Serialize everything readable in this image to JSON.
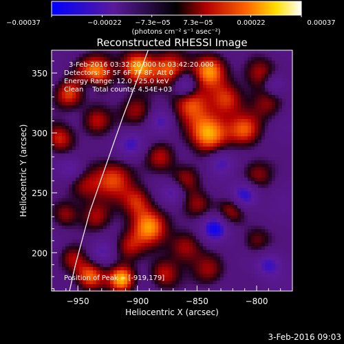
{
  "chart_data": {
    "type": "heatmap",
    "title": "Reconstructed RHESSI Image",
    "xlabel": "Heliocentric X (arcsec)",
    "ylabel": "Heliocentric Y (arcsec)",
    "xlim": [
      -972,
      -770
    ],
    "ylim": [
      168,
      369
    ],
    "xticks": [
      -950,
      -900,
      -850,
      -800
    ],
    "yticks": [
      200,
      250,
      300,
      350
    ],
    "xtick_labels": [
      "−950",
      "−900",
      "−850",
      "−800"
    ],
    "ytick_labels": [
      "200",
      "250",
      "300",
      "350"
    ],
    "colorbar": {
      "range": [
        -0.00037,
        0.00037
      ],
      "ticks": [
        -0.00037,
        -0.00022,
        -7.3e-05,
        7.3e-05,
        0.00022,
        0.00037
      ],
      "tick_labels": [
        "−0.00037",
        "−0.00022",
        "−7.3e−05",
        "7.3e−05",
        "0.00022",
        "0.00037"
      ],
      "unit_label": "(photons cm⁻² s⁻¹ asec⁻²)",
      "colormap": [
        "#0000ff",
        "#5a1a9a",
        "#000000",
        "#b40000",
        "#ff6400",
        "#ffe000",
        "#ffffff"
      ]
    },
    "annotations": {
      "time_range": "3-Feb-2016 03:32:20.000 to 03:42:20.000",
      "detectors": "Detectors: 3F 5F 6F 7F 8F, Att 0",
      "energy": "Energy Range: 12.0 - 25.0 keV",
      "clean": "Clean    Total counts: 4.54E+03",
      "position": "Position of Peak = [-919,179]"
    },
    "limb_curve": {
      "x": [
        -957,
        -952,
        -946,
        -940,
        -933,
        -926,
        -919,
        -912,
        -905,
        -898,
        -891
      ],
      "y": [
        168,
        190,
        212,
        234,
        254,
        274,
        294,
        314,
        332,
        350,
        369
      ]
    },
    "sources": [
      {
        "x": -935,
        "y": 350,
        "sigma": 11,
        "amp": 0.9
      },
      {
        "x": -900,
        "y": 355,
        "sigma": 10,
        "amp": 0.85
      },
      {
        "x": -872,
        "y": 353,
        "sigma": 11,
        "amp": 0.75
      },
      {
        "x": -840,
        "y": 352,
        "sigma": 10,
        "amp": 0.8
      },
      {
        "x": -798,
        "y": 350,
        "sigma": 10,
        "amp": 0.55
      },
      {
        "x": -958,
        "y": 332,
        "sigma": 9,
        "amp": 0.65
      },
      {
        "x": -935,
        "y": 310,
        "sigma": 9,
        "amp": 0.55
      },
      {
        "x": -900,
        "y": 318,
        "sigma": 10,
        "amp": 0.5
      },
      {
        "x": -855,
        "y": 325,
        "sigma": 11,
        "amp": 0.65
      },
      {
        "x": -825,
        "y": 328,
        "sigma": 10,
        "amp": 0.6
      },
      {
        "x": -790,
        "y": 325,
        "sigma": 10,
        "amp": 0.45
      },
      {
        "x": -965,
        "y": 295,
        "sigma": 9,
        "amp": 0.6
      },
      {
        "x": -920,
        "y": 262,
        "sigma": 12,
        "amp": 0.7
      },
      {
        "x": -880,
        "y": 280,
        "sigma": 9,
        "amp": 0.5
      },
      {
        "x": -840,
        "y": 300,
        "sigma": 12,
        "amp": 0.95
      },
      {
        "x": -810,
        "y": 302,
        "sigma": 10,
        "amp": 0.65
      },
      {
        "x": -945,
        "y": 255,
        "sigma": 10,
        "amp": 0.45
      },
      {
        "x": -900,
        "y": 243,
        "sigma": 9,
        "amp": 0.55
      },
      {
        "x": -860,
        "y": 262,
        "sigma": 9,
        "amp": 0.5
      },
      {
        "x": -800,
        "y": 265,
        "sigma": 10,
        "amp": 0.5
      },
      {
        "x": -935,
        "y": 230,
        "sigma": 9,
        "amp": 0.5
      },
      {
        "x": -890,
        "y": 222,
        "sigma": 11,
        "amp": 0.85
      },
      {
        "x": -848,
        "y": 240,
        "sigma": 9,
        "amp": 0.45
      },
      {
        "x": -822,
        "y": 235,
        "sigma": 9,
        "amp": 0.55
      },
      {
        "x": -960,
        "y": 232,
        "sigma": 8,
        "amp": 0.45
      },
      {
        "x": -908,
        "y": 205,
        "sigma": 9,
        "amp": 0.5
      },
      {
        "x": -860,
        "y": 205,
        "sigma": 10,
        "amp": 0.55
      },
      {
        "x": -800,
        "y": 210,
        "sigma": 9,
        "amp": 0.45
      },
      {
        "x": -940,
        "y": 180,
        "sigma": 9,
        "amp": 0.8
      },
      {
        "x": -913,
        "y": 178,
        "sigma": 8,
        "amp": 0.9
      },
      {
        "x": -878,
        "y": 182,
        "sigma": 9,
        "amp": 0.55
      },
      {
        "x": -840,
        "y": 185,
        "sigma": 10,
        "amp": 0.5
      },
      {
        "x": -955,
        "y": 195,
        "sigma": 8,
        "amp": 0.45
      },
      {
        "x": -810,
        "y": 248,
        "sigma": 8,
        "amp": -0.7
      },
      {
        "x": -835,
        "y": 220,
        "sigma": 8,
        "amp": -0.75
      },
      {
        "x": -860,
        "y": 340,
        "sigma": 7,
        "amp": -0.6
      },
      {
        "x": -905,
        "y": 290,
        "sigma": 8,
        "amp": -0.45
      },
      {
        "x": -940,
        "y": 340,
        "sigma": 7,
        "amp": -0.4
      },
      {
        "x": -790,
        "y": 190,
        "sigma": 8,
        "amp": -0.45
      },
      {
        "x": -870,
        "y": 250,
        "sigma": 7,
        "amp": -0.45
      },
      {
        "x": -830,
        "y": 275,
        "sigma": 8,
        "amp": -0.5
      },
      {
        "x": -955,
        "y": 270,
        "sigma": 7,
        "amp": -0.4
      },
      {
        "x": -880,
        "y": 310,
        "sigma": 7,
        "amp": -0.4
      },
      {
        "x": -785,
        "y": 340,
        "sigma": 7,
        "amp": -0.45
      },
      {
        "x": -930,
        "y": 200,
        "sigma": 7,
        "amp": -0.35
      }
    ]
  },
  "footer": {
    "timestamp": "3-Feb-2016 09:03"
  }
}
